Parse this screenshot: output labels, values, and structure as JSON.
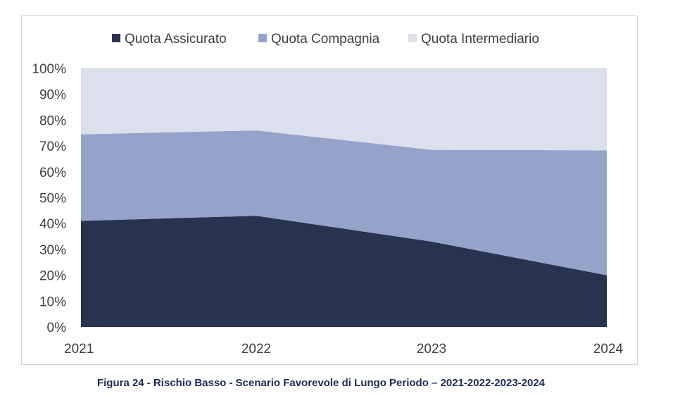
{
  "caption": "Figura 24 - Rischio Basso - Scenario Favorevole di Lungo Periodo – 2021-2022-2023-2024",
  "chart_data": {
    "type": "area",
    "stacked": true,
    "percent": true,
    "categories": [
      "2021",
      "2022",
      "2023",
      "2024"
    ],
    "series": [
      {
        "name": "Quota Assicurato",
        "color": "#283350",
        "values": [
          41,
          43,
          33,
          20
        ]
      },
      {
        "name": "Quota Compagnia",
        "color": "#95a3cb",
        "values": [
          33.5,
          33,
          35.5,
          48.3
        ]
      },
      {
        "name": "Quota Intermediario",
        "color": "#dce0ec",
        "values": [
          25.5,
          24,
          31.5,
          31.7
        ]
      }
    ],
    "y_ticks": [
      "0%",
      "10%",
      "20%",
      "30%",
      "40%",
      "50%",
      "60%",
      "70%",
      "80%",
      "90%",
      "100%"
    ],
    "ylim": [
      0,
      100
    ],
    "legend_position": "top",
    "grid": false
  }
}
